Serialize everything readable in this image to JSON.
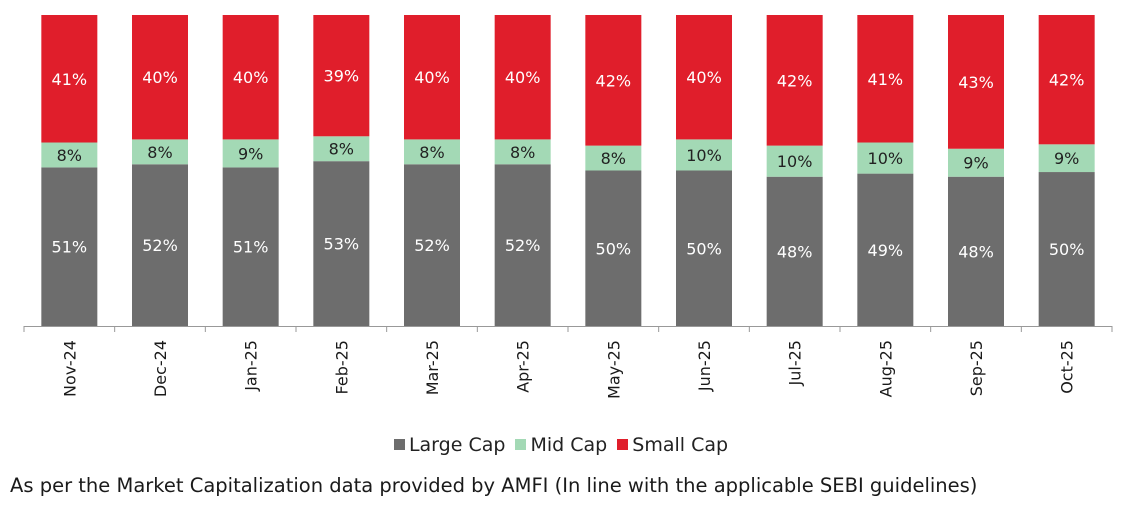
{
  "chart_data": {
    "type": "bar",
    "stacked": true,
    "categories": [
      "Nov-24",
      "Dec-24",
      "Jan-25",
      "Feb-25",
      "Mar-25",
      "Apr-25",
      "May-25",
      "Jun-25",
      "Jul-25",
      "Aug-25",
      "Sep-25",
      "Oct-25"
    ],
    "series": [
      {
        "name": "Large Cap",
        "color": "#6d6d6d",
        "values": [
          51,
          52,
          51,
          53,
          52,
          52,
          50,
          50,
          48,
          49,
          48,
          50
        ]
      },
      {
        "name": "Mid Cap",
        "color": "#a3d9b5",
        "values": [
          8,
          8,
          9,
          8,
          8,
          8,
          8,
          10,
          10,
          10,
          9,
          9
        ]
      },
      {
        "name": "Small Cap",
        "color": "#e01e2b",
        "values": [
          41,
          40,
          40,
          39,
          40,
          40,
          42,
          40,
          42,
          41,
          43,
          42
        ]
      }
    ],
    "value_format": "%",
    "ylim": [
      0,
      100
    ],
    "legend": "bottom-center"
  },
  "footnote": "As per the Market Capitalization data provided by AMFI (In line with the applicable SEBI guidelines)"
}
